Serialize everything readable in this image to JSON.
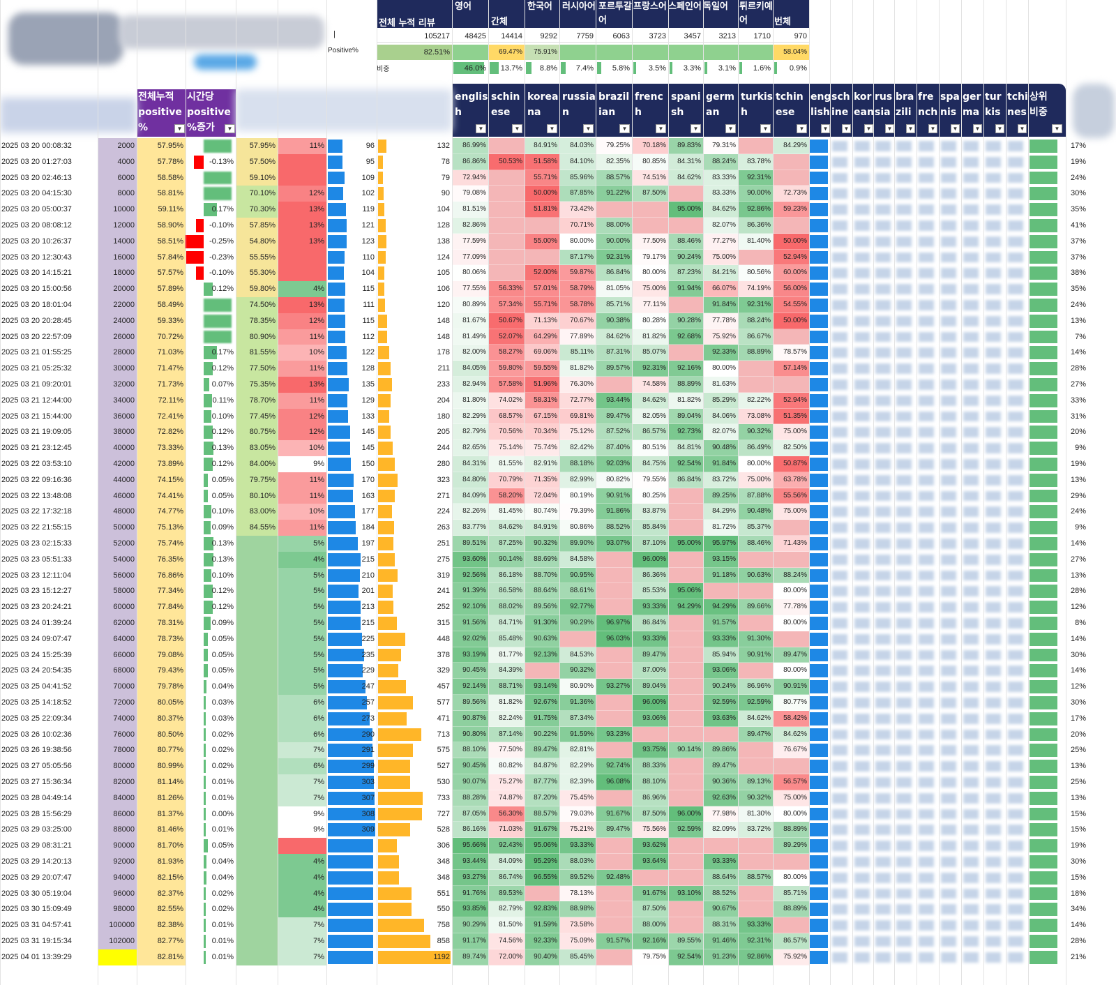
{
  "summary": {
    "headers": [
      "영어",
      "간체",
      "한국어",
      "러시아어",
      "포르투갈어",
      "프랑스어",
      "스페인어",
      "독일어",
      "튀르키예어",
      "번체"
    ],
    "total_label": "전체 누적 리뷰",
    "counts": [
      "105217",
      "48425",
      "14414",
      "9292",
      "7759",
      "6063",
      "3723",
      "3457",
      "3213",
      "1710",
      "970"
    ],
    "positive_label": "Positive%",
    "positive_total": "82.51%",
    "positive_values": [
      "",
      "",
      "69.47%",
      "75.91%",
      "",
      "",
      "",
      "",
      "",
      "",
      "58.04%"
    ],
    "share_label": "비중",
    "share_values": [
      "",
      "46.0%",
      "13.7%",
      "8.8%",
      "7.4%",
      "5.8%",
      "3.5%",
      "3.3%",
      "3.1%",
      "1.6%",
      "0.9%"
    ]
  },
  "table_header": {
    "cumulative": "전체누적 positive %",
    "hourly": "시간당 positive %증가",
    "langs": [
      "english",
      "schinese",
      "koreana",
      "russian",
      "brazilian",
      "french",
      "spanish",
      "german",
      "turkish",
      "tchinese"
    ],
    "share_langs": [
      "english",
      "schinese",
      "koreana",
      "russian",
      "brazilian",
      "french",
      "spanish",
      "german",
      "turkish",
      "tchinese"
    ],
    "top": "상위 비중"
  },
  "rows": [
    [
      "2025 03 20 00:08:32",
      "2000",
      "57.95%",
      "",
      "57.95%",
      "11%",
      "96",
      "132",
      [
        "86.99%",
        "",
        "84.91%",
        "84.03%",
        "79.25%",
        "70.18%",
        "89.83%",
        "79.31%",
        "",
        "84.29%"
      ],
      "17%"
    ],
    [
      "2025 03 20 01:27:03",
      "4000",
      "57.78%",
      "-0.13%",
      "57.50%",
      "",
      "95",
      "78",
      [
        "86.86%",
        "50.53%",
        "51.58%",
        "84.10%",
        "82.35%",
        "80.85%",
        "84.31%",
        "88.24%",
        "83.78%",
        ""
      ],
      "19%"
    ],
    [
      "2025 03 20 02:46:13",
      "6000",
      "58.58%",
      "",
      "59.10%",
      "",
      "109",
      "79",
      [
        "72.94%",
        "",
        "55.71%",
        "85.96%",
        "88.57%",
        "74.51%",
        "84.62%",
        "83.33%",
        "92.31%",
        ""
      ],
      "24%"
    ],
    [
      "2025 03 20 04:15:30",
      "8000",
      "58.81%",
      "",
      "70.10%",
      "12%",
      "102",
      "90",
      [
        "79.08%",
        "",
        "50.00%",
        "87.85%",
        "91.22%",
        "87.50%",
        "",
        "83.33%",
        "90.00%",
        "72.73%"
      ],
      "30%"
    ],
    [
      "2025 03 20 05:00:37",
      "10000",
      "59.11%",
      "0.17%",
      "70.30%",
      "13%",
      "119",
      "104",
      [
        "81.51%",
        "",
        "51.81%",
        "73.42%",
        "",
        "",
        "95.00%",
        "84.62%",
        "92.86%",
        "59.23%"
      ],
      "35%"
    ],
    [
      "2025 03 20 08:08:12",
      "12000",
      "58.90%",
      "-0.10%",
      "57.85%",
      "13%",
      "121",
      "128",
      [
        "82.86%",
        "",
        "",
        "70.71%",
        "88.00%",
        "",
        "",
        "82.07%",
        "86.36%",
        ""
      ],
      "41%"
    ],
    [
      "2025 03 20 10:26:37",
      "14000",
      "58.51%",
      "-0.25%",
      "54.80%",
      "13%",
      "123",
      "138",
      [
        "77.59%",
        "",
        "55.00%",
        "80.00%",
        "90.00%",
        "77.50%",
        "88.46%",
        "77.27%",
        "81.40%",
        "50.00%"
      ],
      "37%"
    ],
    [
      "2025 03 20 12:30:43",
      "16000",
      "57.84%",
      "-0.23%",
      "55.55%",
      "",
      "110",
      "124",
      [
        "77.09%",
        "",
        "",
        "87.17%",
        "92.31%",
        "79.17%",
        "90.24%",
        "75.00%",
        "",
        "52.94%"
      ],
      "37%"
    ],
    [
      "2025 03 20 14:15:21",
      "18000",
      "57.57%",
      "-0.10%",
      "55.30%",
      "",
      "104",
      "105",
      [
        "80.06%",
        "",
        "52.00%",
        "59.87%",
        "86.84%",
        "80.00%",
        "87.23%",
        "84.21%",
        "80.56%",
        "60.00%"
      ],
      "38%"
    ],
    [
      "2025 03 20 15:00:56",
      "20000",
      "57.89%",
      "0.12%",
      "59.80%",
      "4%",
      "115",
      "106",
      [
        "77.55%",
        "56.33%",
        "57.01%",
        "58.79%",
        "81.05%",
        "75.00%",
        "91.94%",
        "66.07%",
        "74.19%",
        "56.00%"
      ],
      "35%"
    ],
    [
      "2025 03 20 18:01:04",
      "22000",
      "58.49%",
      "",
      "74.50%",
      "13%",
      "111",
      "120",
      [
        "80.89%",
        "57.34%",
        "55.71%",
        "58.78%",
        "85.71%",
        "77.11%",
        "",
        "91.84%",
        "92.31%",
        "54.55%"
      ],
      "24%"
    ],
    [
      "2025 03 20 20:28:45",
      "24000",
      "59.33%",
      "",
      "78.35%",
      "12%",
      "115",
      "148",
      [
        "81.67%",
        "50.67%",
        "71.13%",
        "70.67%",
        "90.38%",
        "80.28%",
        "90.28%",
        "77.78%",
        "88.24%",
        "50.00%"
      ],
      "13%"
    ],
    [
      "2025 03 20 22:57:09",
      "26000",
      "70.72%",
      "",
      "80.90%",
      "11%",
      "112",
      "148",
      [
        "81.49%",
        "52.07%",
        "64.29%",
        "77.89%",
        "84.62%",
        "81.82%",
        "92.68%",
        "75.92%",
        "86.67%",
        ""
      ],
      "7%"
    ],
    [
      "2025 03 21 01:55:25",
      "28000",
      "71.03%",
      "0.17%",
      "81.55%",
      "10%",
      "122",
      "178",
      [
        "82.00%",
        "58.27%",
        "69.06%",
        "85.11%",
        "87.31%",
        "85.07%",
        "",
        "92.33%",
        "88.89%",
        "78.57%"
      ],
      "14%"
    ],
    [
      "2025 03 21 05:25:32",
      "30000",
      "71.47%",
      "0.12%",
      "77.50%",
      "11%",
      "128",
      "211",
      [
        "84.05%",
        "59.80%",
        "59.55%",
        "81.82%",
        "89.57%",
        "92.31%",
        "92.16%",
        "80.00%",
        "",
        "57.14%"
      ],
      "28%"
    ],
    [
      "2025 03 21 09:20:01",
      "32000",
      "71.73%",
      "0.07%",
      "75.35%",
      "13%",
      "135",
      "233",
      [
        "82.94%",
        "57.58%",
        "51.96%",
        "76.30%",
        "",
        "74.58%",
        "88.89%",
        "81.63%",
        "",
        ""
      ],
      "27%"
    ],
    [
      "2025 03 21 12:44:00",
      "34000",
      "72.11%",
      "0.11%",
      "78.70%",
      "11%",
      "129",
      "204",
      [
        "81.80%",
        "74.02%",
        "58.31%",
        "72.77%",
        "93.44%",
        "84.62%",
        "81.82%",
        "85.29%",
        "82.22%",
        "52.94%"
      ],
      "33%"
    ],
    [
      "2025 03 21 15:44:00",
      "36000",
      "72.41%",
      "0.10%",
      "77.45%",
      "12%",
      "133",
      "180",
      [
        "82.29%",
        "68.57%",
        "67.15%",
        "69.81%",
        "89.47%",
        "82.05%",
        "89.04%",
        "84.06%",
        "73.08%",
        "51.35%"
      ],
      "31%"
    ],
    [
      "2025 03 21 19:09:05",
      "38000",
      "72.82%",
      "0.12%",
      "80.75%",
      "12%",
      "145",
      "205",
      [
        "82.79%",
        "70.56%",
        "70.34%",
        "75.12%",
        "87.52%",
        "86.57%",
        "92.73%",
        "82.07%",
        "90.32%",
        "75.00%"
      ],
      "20%"
    ],
    [
      "2025 03 21 23:12:45",
      "40000",
      "73.33%",
      "0.13%",
      "83.05%",
      "10%",
      "145",
      "244",
      [
        "82.65%",
        "75.14%",
        "75.74%",
        "82.42%",
        "87.40%",
        "80.51%",
        "84.81%",
        "90.48%",
        "86.49%",
        "82.50%"
      ],
      "9%"
    ],
    [
      "2025 03 22 03:53:10",
      "42000",
      "73.89%",
      "0.12%",
      "84.00%",
      "9%",
      "150",
      "280",
      [
        "84.31%",
        "81.55%",
        "82.91%",
        "88.18%",
        "92.03%",
        "84.75%",
        "92.54%",
        "91.84%",
        "80.00%",
        "50.87%"
      ],
      "19%"
    ],
    [
      "2025 03 22 09:16:36",
      "44000",
      "74.15%",
      "0.05%",
      "79.75%",
      "11%",
      "170",
      "323",
      [
        "84.80%",
        "70.79%",
        "71.35%",
        "82.99%",
        "80.82%",
        "79.55%",
        "86.84%",
        "83.72%",
        "75.00%",
        "63.78%"
      ],
      "13%"
    ],
    [
      "2025 03 22 13:48:08",
      "46000",
      "74.41%",
      "0.05%",
      "80.10%",
      "11%",
      "163",
      "271",
      [
        "84.09%",
        "58.20%",
        "72.04%",
        "80.19%",
        "90.91%",
        "80.25%",
        "",
        "89.25%",
        "87.88%",
        "55.56%"
      ],
      "29%"
    ],
    [
      "2025 03 22 17:32:18",
      "48000",
      "74.77%",
      "0.10%",
      "83.00%",
      "10%",
      "177",
      "224",
      [
        "82.26%",
        "81.45%",
        "80.74%",
        "79.39%",
        "91.86%",
        "83.87%",
        "",
        "84.29%",
        "90.48%",
        "75.00%"
      ],
      "24%"
    ],
    [
      "2025 03 22 21:55:15",
      "50000",
      "75.13%",
      "0.09%",
      "84.55%",
      "11%",
      "184",
      "263",
      [
        "83.77%",
        "84.62%",
        "84.91%",
        "80.86%",
        "88.52%",
        "85.84%",
        "",
        "81.72%",
        "85.37%",
        ""
      ],
      "9%"
    ],
    [
      "2025 03 23 02:15:33",
      "52000",
      "75.74%",
      "0.13%",
      "",
      "5%",
      "197",
      "251",
      [
        "89.51%",
        "87.25%",
        "90.32%",
        "89.90%",
        "93.07%",
        "87.10%",
        "95.00%",
        "95.97%",
        "88.46%",
        "71.43%"
      ],
      "14%"
    ],
    [
      "2025 03 23 05:51:33",
      "54000",
      "76.35%",
      "0.13%",
      "",
      "4%",
      "215",
      "275",
      [
        "93.60%",
        "90.14%",
        "88.69%",
        "84.58%",
        "",
        "96.00%",
        "",
        "93.15%",
        "",
        ""
      ],
      "27%"
    ],
    [
      "2025 03 23 12:11:04",
      "56000",
      "76.86%",
      "0.10%",
      "",
      "5%",
      "210",
      "319",
      [
        "92.56%",
        "86.18%",
        "88.70%",
        "90.95%",
        "",
        "86.36%",
        "",
        "91.18%",
        "90.63%",
        "88.24%"
      ],
      "13%"
    ],
    [
      "2025 03 23 15:12:27",
      "58000",
      "77.34%",
      "0.12%",
      "",
      "5%",
      "201",
      "241",
      [
        "91.39%",
        "86.58%",
        "88.64%",
        "88.61%",
        "",
        "85.53%",
        "95.06%",
        "",
        "",
        "80.00%"
      ],
      "28%"
    ],
    [
      "2025 03 23 20:24:21",
      "60000",
      "77.84%",
      "0.12%",
      "",
      "5%",
      "213",
      "252",
      [
        "92.10%",
        "88.02%",
        "89.56%",
        "92.77%",
        "",
        "93.33%",
        "94.29%",
        "94.29%",
        "89.66%",
        "77.78%"
      ],
      "12%"
    ],
    [
      "2025 03 24 01:39:24",
      "62000",
      "78.31%",
      "0.09%",
      "",
      "5%",
      "215",
      "315",
      [
        "91.56%",
        "84.71%",
        "91.30%",
        "90.29%",
        "96.97%",
        "86.84%",
        "",
        "91.57%",
        "",
        "80.00%"
      ],
      "8%"
    ],
    [
      "2025 03 24 09:07:47",
      "64000",
      "78.73%",
      "0.05%",
      "",
      "5%",
      "225",
      "448",
      [
        "92.02%",
        "85.48%",
        "90.63%",
        "",
        "96.03%",
        "93.33%",
        "",
        "93.33%",
        "91.30%",
        ""
      ],
      "14%"
    ],
    [
      "2025 03 24 15:25:39",
      "66000",
      "79.08%",
      "0.05%",
      "",
      "5%",
      "235",
      "378",
      [
        "93.19%",
        "81.77%",
        "92.13%",
        "84.53%",
        "",
        "89.47%",
        "",
        "85.94%",
        "90.91%",
        "89.47%"
      ],
      "30%"
    ],
    [
      "2025 03 24 20:54:35",
      "68000",
      "79.43%",
      "0.05%",
      "",
      "5%",
      "229",
      "329",
      [
        "90.45%",
        "84.39%",
        "",
        "90.32%",
        "",
        "87.00%",
        "",
        "93.06%",
        "",
        "80.00%"
      ],
      "14%"
    ],
    [
      "2025 03 25 04:41:52",
      "70000",
      "79.78%",
      "0.04%",
      "",
      "5%",
      "247",
      "457",
      [
        "92.14%",
        "88.71%",
        "93.14%",
        "80.90%",
        "93.27%",
        "89.04%",
        "",
        "90.24%",
        "86.96%",
        "90.91%"
      ],
      "12%"
    ],
    [
      "2025 03 25 14:18:52",
      "72000",
      "80.05%",
      "0.03%",
      "",
      "6%",
      "257",
      "577",
      [
        "89.56%",
        "81.82%",
        "92.67%",
        "91.36%",
        "",
        "96.00%",
        "",
        "92.59%",
        "92.59%",
        "80.77%"
      ],
      "30%"
    ],
    [
      "2025 03 25 22:09:34",
      "74000",
      "80.37%",
      "0.03%",
      "",
      "6%",
      "273",
      "471",
      [
        "90.87%",
        "82.24%",
        "91.75%",
        "87.34%",
        "",
        "93.06%",
        "",
        "93.63%",
        "84.62%",
        "58.42%"
      ],
      "17%"
    ],
    [
      "2025 03 26 10:02:36",
      "76000",
      "80.50%",
      "0.02%",
      "",
      "6%",
      "290",
      "713",
      [
        "90.80%",
        "87.14%",
        "90.22%",
        "91.59%",
        "93.23%",
        "",
        "",
        "",
        "89.47%",
        "84.62%"
      ],
      "20%"
    ],
    [
      "2025 03 26 19:38:56",
      "78000",
      "80.77%",
      "0.02%",
      "",
      "7%",
      "291",
      "575",
      [
        "88.10%",
        "77.50%",
        "89.47%",
        "82.81%",
        "",
        "93.75%",
        "90.14%",
        "89.86%",
        "",
        "76.67%"
      ],
      "25%"
    ],
    [
      "2025 03 27 05:05:56",
      "80000",
      "80.99%",
      "0.02%",
      "",
      "6%",
      "299",
      "527",
      [
        "90.45%",
        "80.82%",
        "84.87%",
        "82.29%",
        "92.74%",
        "88.33%",
        "",
        "89.47%",
        "",
        ""
      ],
      "13%"
    ],
    [
      "2025 03 27 15:36:34",
      "82000",
      "81.14%",
      "0.01%",
      "",
      "7%",
      "303",
      "530",
      [
        "90.07%",
        "75.27%",
        "87.77%",
        "82.39%",
        "96.08%",
        "88.10%",
        "",
        "90.36%",
        "89.13%",
        "56.57%"
      ],
      "25%"
    ],
    [
      "2025 03 28 04:49:14",
      "84000",
      "81.26%",
      "0.01%",
      "",
      "7%",
      "307",
      "733",
      [
        "88.28%",
        "74.87%",
        "87.20%",
        "75.45%",
        "",
        "86.96%",
        "",
        "92.63%",
        "90.32%",
        "75.00%"
      ],
      "13%"
    ],
    [
      "2025 03 28 15:56:29",
      "86000",
      "81.37%",
      "0.00%",
      "",
      "9%",
      "308",
      "727",
      [
        "87.05%",
        "56.30%",
        "88.57%",
        "79.03%",
        "91.67%",
        "87.50%",
        "96.00%",
        "77.98%",
        "81.30%",
        "80.00%"
      ],
      "15%"
    ],
    [
      "2025 03 29 03:25:00",
      "88000",
      "81.46%",
      "0.01%",
      "",
      "9%",
      "309",
      "528",
      [
        "86.16%",
        "71.03%",
        "91.67%",
        "75.21%",
        "89.47%",
        "75.56%",
        "92.59%",
        "82.09%",
        "83.72%",
        "88.89%"
      ],
      "15%"
    ],
    [
      "2025 03 29 08:31:21",
      "90000",
      "81.70%",
      "0.05%",
      "",
      "",
      "",
      "306",
      [
        "95.66%",
        "92.43%",
        "95.06%",
        "93.33%",
        "",
        "93.62%",
        "",
        "",
        "",
        "89.29%"
      ],
      "19%"
    ],
    [
      "2025 03 29 14:20:13",
      "92000",
      "81.93%",
      "0.04%",
      "",
      "4%",
      "",
      "348",
      [
        "93.44%",
        "84.09%",
        "95.29%",
        "88.03%",
        "",
        "93.64%",
        "",
        "93.33%",
        "",
        ""
      ],
      "30%"
    ],
    [
      "2025 03 29 20:07:47",
      "94000",
      "82.15%",
      "0.04%",
      "",
      "4%",
      "",
      "348",
      [
        "93.27%",
        "86.74%",
        "96.55%",
        "89.52%",
        "92.48%",
        "",
        "",
        "88.64%",
        "88.57%",
        "80.00%"
      ],
      "15%"
    ],
    [
      "2025 03 30 05:19:04",
      "96000",
      "82.37%",
      "0.02%",
      "",
      "4%",
      "",
      "551",
      [
        "91.76%",
        "89.53%",
        "",
        "78.13%",
        "",
        "91.67%",
        "93.10%",
        "88.52%",
        "",
        "85.71%"
      ],
      "18%"
    ],
    [
      "2025 03 30 15:09:49",
      "98000",
      "82.55%",
      "0.02%",
      "",
      "4%",
      "",
      "550",
      [
        "93.85%",
        "82.79%",
        "92.83%",
        "88.98%",
        "",
        "87.50%",
        "",
        "90.67%",
        "",
        "88.89%"
      ],
      "34%"
    ],
    [
      "2025 03 31 04:57:41",
      "100000",
      "82.38%",
      "0.01%",
      "",
      "7%",
      "",
      "758",
      [
        "90.29%",
        "81.50%",
        "91.59%",
        "73.58%",
        "",
        "88.00%",
        "",
        "88.31%",
        "93.33%",
        ""
      ],
      "14%"
    ],
    [
      "2025 03 31 19:15:34",
      "102000",
      "82.77%",
      "0.01%",
      "",
      "7%",
      "",
      "858",
      [
        "91.17%",
        "74.56%",
        "92.33%",
        "75.09%",
        "91.57%",
        "92.16%",
        "89.55%",
        "91.46%",
        "92.31%",
        "86.57%"
      ],
      "28%"
    ],
    [
      "2025 04 01 13:39:29",
      "",
      "82.81%",
      "0.01%",
      "",
      "7%",
      "",
      "1192",
      [
        "89.74%",
        "72.00%",
        "90.40%",
        "85.45%",
        "",
        "79.75%",
        "92.54%",
        "91.23%",
        "92.86%",
        "75.92%"
      ],
      "21%"
    ]
  ],
  "colors": {
    "header_navy": "#1f2a5c",
    "header_purple": "#7030a0",
    "col_purple": "#ccc0da",
    "col_yellow": "#ffe699",
    "bar_red": "#ff0000",
    "bar_green": "#63be7b",
    "bar_blue": "#1e88e5",
    "bar_orange": "#ffb628",
    "heat_red": "#f8696b",
    "heat_green": "#63be7b"
  }
}
